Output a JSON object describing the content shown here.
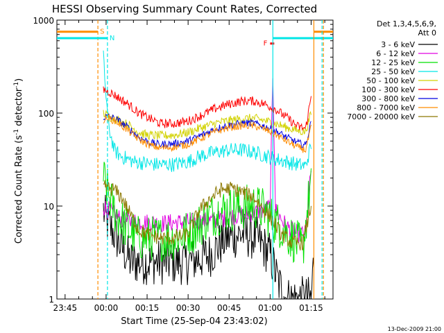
{
  "chart_data": {
    "type": "line",
    "title": "HESSI Observing Summary Count Rates, Corrected",
    "xlabel": "Start Time (25-Sep-04 23:43:02)",
    "ylabel": "Corrected Count Rate (s⁻¹ detector⁻¹)",
    "ylabel_main": "Corrected Count Rate (s",
    "ylabel_sup1": "-1",
    "ylabel_mid": " detector",
    "ylabel_sup2": "-1",
    "ylabel_end": ")",
    "yscale": "log",
    "ylim": [
      1,
      1000
    ],
    "xlim_minutes": [
      -18,
      83
    ],
    "x_ticks": [
      {
        "m": -15,
        "label": "23:45"
      },
      {
        "m": 0,
        "label": "00:00"
      },
      {
        "m": 15,
        "label": "00:15"
      },
      {
        "m": 30,
        "label": "00:30"
      },
      {
        "m": 45,
        "label": "00:45"
      },
      {
        "m": 60,
        "label": "01:00"
      },
      {
        "m": 75,
        "label": "01:15"
      }
    ],
    "y_ticks": [
      {
        "v": 1,
        "label": "1"
      },
      {
        "v": 10,
        "label": "10"
      },
      {
        "v": 100,
        "label": "100"
      },
      {
        "v": 1000,
        "label": "1000"
      }
    ],
    "legend": {
      "position": "right",
      "header": [
        "Det 1,3,4,5,6,9,",
        "Att 0"
      ],
      "entries": [
        {
          "label": "3 - 6 keV",
          "color": "#000000"
        },
        {
          "label": "6 - 12 keV",
          "color": "#e100e1"
        },
        {
          "label": "12 - 25 keV",
          "color": "#00e100"
        },
        {
          "label": "25 - 50 keV",
          "color": "#00e6e6"
        },
        {
          "label": "50 - 100 keV",
          "color": "#d2d200"
        },
        {
          "label": "100 - 300 keV",
          "color": "#ff0000"
        },
        {
          "label": "300 - 800 keV",
          "color": "#0000e1"
        },
        {
          "label": "800 - 7000 keV",
          "color": "#ff8c00"
        },
        {
          "label": "7000 - 20000 keV",
          "color": "#8c7800"
        }
      ]
    },
    "series": [
      {
        "name": "3 - 6 keV",
        "color": "#000000",
        "noise": 0.25,
        "points": [
          [
            -1,
            9
          ],
          [
            0,
            7
          ],
          [
            3,
            5
          ],
          [
            6,
            3.5
          ],
          [
            9,
            2.5
          ],
          [
            20,
            2.5
          ],
          [
            30,
            2.5
          ],
          [
            38,
            3
          ],
          [
            44,
            4.5
          ],
          [
            50,
            5
          ],
          [
            55,
            4.5
          ],
          [
            60,
            3
          ],
          [
            63,
            1.5
          ],
          [
            66,
            1
          ],
          [
            75,
            1
          ],
          [
            76,
            2.8
          ]
        ]
      },
      {
        "name": "6 - 12 keV",
        "color": "#e100e1",
        "noise": 0.1,
        "points": [
          [
            -1,
            10
          ],
          [
            2,
            8.5
          ],
          [
            6,
            7
          ],
          [
            20,
            6.5
          ],
          [
            40,
            7
          ],
          [
            48,
            8
          ],
          [
            54,
            8.5
          ],
          [
            58,
            9
          ],
          [
            60,
            10
          ],
          [
            61,
            260
          ],
          [
            62,
            9
          ],
          [
            66,
            6
          ],
          [
            70,
            5
          ],
          [
            73,
            5
          ],
          [
            75,
            25
          ]
        ]
      },
      {
        "name": "12 - 25 keV",
        "color": "#00e100",
        "noise": 0.25,
        "points": [
          [
            -1,
            20
          ],
          [
            1,
            13
          ],
          [
            3,
            9
          ],
          [
            7,
            6
          ],
          [
            12,
            4.5
          ],
          [
            25,
            4.5
          ],
          [
            32,
            5.5
          ],
          [
            38,
            8
          ],
          [
            43,
            9
          ],
          [
            48,
            9.5
          ],
          [
            54,
            10
          ],
          [
            58,
            9
          ],
          [
            61,
            7
          ],
          [
            64,
            6
          ],
          [
            68,
            4.5
          ],
          [
            72,
            3.5
          ],
          [
            75,
            20
          ]
        ]
      },
      {
        "name": "25 - 50 keV",
        "color": "#00e6e6",
        "noise": 0.08,
        "points": [
          [
            -1,
            400
          ],
          [
            0,
            150
          ],
          [
            1,
            70
          ],
          [
            3,
            40
          ],
          [
            5,
            35
          ],
          [
            10,
            30
          ],
          [
            18,
            28
          ],
          [
            25,
            28
          ],
          [
            30,
            30
          ],
          [
            35,
            35
          ],
          [
            40,
            38
          ],
          [
            45,
            40
          ],
          [
            50,
            40
          ],
          [
            54,
            38
          ],
          [
            58,
            35
          ],
          [
            62,
            32
          ],
          [
            66,
            30
          ],
          [
            70,
            28
          ],
          [
            73,
            27
          ],
          [
            75,
            45
          ]
        ]
      },
      {
        "name": "50 - 100 keV",
        "color": "#d2d200",
        "noise": 0.05,
        "points": [
          [
            -1,
            100
          ],
          [
            1,
            92
          ],
          [
            4,
            85
          ],
          [
            8,
            75
          ],
          [
            12,
            62
          ],
          [
            15,
            58
          ],
          [
            20,
            57
          ],
          [
            25,
            58
          ],
          [
            30,
            62
          ],
          [
            35,
            70
          ],
          [
            40,
            78
          ],
          [
            45,
            83
          ],
          [
            50,
            87
          ],
          [
            54,
            88
          ],
          [
            58,
            83
          ],
          [
            62,
            77
          ],
          [
            66,
            70
          ],
          [
            70,
            65
          ],
          [
            73,
            63
          ],
          [
            75,
            100
          ]
        ]
      },
      {
        "name": "100 - 300 keV",
        "color": "#ff0000",
        "noise": 0.05,
        "points": [
          [
            -1,
            180
          ],
          [
            1,
            170
          ],
          [
            4,
            150
          ],
          [
            8,
            125
          ],
          [
            12,
            100
          ],
          [
            15,
            90
          ],
          [
            20,
            77
          ],
          [
            25,
            77
          ],
          [
            30,
            82
          ],
          [
            35,
            95
          ],
          [
            40,
            112
          ],
          [
            45,
            125
          ],
          [
            50,
            135
          ],
          [
            54,
            135
          ],
          [
            58,
            125
          ],
          [
            62,
            110
          ],
          [
            66,
            90
          ],
          [
            70,
            72
          ],
          [
            73,
            68
          ],
          [
            75,
            150
          ]
        ]
      },
      {
        "name": "300 - 800 keV",
        "color": "#0000e1",
        "noise": 0.04,
        "points": [
          [
            -1,
            90
          ],
          [
            1,
            92
          ],
          [
            4,
            85
          ],
          [
            8,
            70
          ],
          [
            12,
            55
          ],
          [
            16,
            48
          ],
          [
            20,
            46
          ],
          [
            25,
            47
          ],
          [
            30,
            50
          ],
          [
            35,
            58
          ],
          [
            40,
            68
          ],
          [
            45,
            74
          ],
          [
            50,
            78
          ],
          [
            54,
            78
          ],
          [
            58,
            72
          ],
          [
            62,
            64
          ],
          [
            66,
            55
          ],
          [
            70,
            48
          ],
          [
            73,
            45
          ],
          [
            75,
            80
          ]
        ]
      },
      {
        "name": "800 - 7000 keV",
        "color": "#ff8c00",
        "noise": 0.04,
        "points": [
          [
            -1,
            85
          ],
          [
            1,
            88
          ],
          [
            4,
            80
          ],
          [
            8,
            65
          ],
          [
            12,
            52
          ],
          [
            16,
            45
          ],
          [
            20,
            42
          ],
          [
            25,
            43
          ],
          [
            30,
            46
          ],
          [
            35,
            54
          ],
          [
            40,
            63
          ],
          [
            45,
            70
          ],
          [
            50,
            73
          ],
          [
            54,
            73
          ],
          [
            58,
            67
          ],
          [
            62,
            59
          ],
          [
            66,
            50
          ],
          [
            70,
            43
          ],
          [
            73,
            40
          ],
          [
            75,
            70
          ]
        ]
      },
      {
        "name": "7000 - 20000 keV",
        "color": "#8c7800",
        "noise": 0.08,
        "points": [
          [
            -1,
            16
          ],
          [
            3,
            15
          ],
          [
            6,
            12
          ],
          [
            9,
            8
          ],
          [
            12,
            5.5
          ],
          [
            15,
            5
          ],
          [
            20,
            4.5
          ],
          [
            25,
            4.5
          ],
          [
            30,
            5
          ],
          [
            34,
            9
          ],
          [
            38,
            12
          ],
          [
            42,
            15
          ],
          [
            46,
            15.5
          ],
          [
            50,
            14
          ],
          [
            54,
            12.5
          ],
          [
            58,
            9
          ],
          [
            61,
            7
          ],
          [
            64,
            5
          ],
          [
            68,
            4
          ],
          [
            72,
            4
          ],
          [
            75,
            10
          ]
        ]
      }
    ],
    "annotations": [
      {
        "kind": "flag",
        "label": "S",
        "color": "#ff8c00",
        "m_start": -18,
        "m_end": -3,
        "y": 750,
        "line_m": -3
      },
      {
        "kind": "flag",
        "label": "N",
        "color": "#00e6e6",
        "m_start": -18,
        "m_end": 0.5,
        "y": 640,
        "line_m": 0.5
      },
      {
        "kind": "flag",
        "label": "F",
        "color": "#ff0000",
        "m_start": 60,
        "m_end": 61.5,
        "y": 560
      },
      {
        "kind": "bar",
        "color": "#00e6e6",
        "m_start": 61,
        "m_end": 83,
        "y": 640
      },
      {
        "kind": "bar",
        "color": "#ff8c00",
        "m_start": 76,
        "m_end": 83,
        "y": 750
      },
      {
        "kind": "vline",
        "color": "#00e6e6",
        "m": 61,
        "dash": false
      },
      {
        "kind": "vline",
        "color": "#ff8c00",
        "m": 76,
        "dash": false
      },
      {
        "kind": "vline",
        "color": "#00e6e6",
        "m": 79,
        "dash": true
      },
      {
        "kind": "vline",
        "color": "#ff8c00",
        "m": 79.5,
        "dash": true
      }
    ]
  },
  "footer": {
    "date_stamp": "13-Dec-2009 21:00"
  }
}
